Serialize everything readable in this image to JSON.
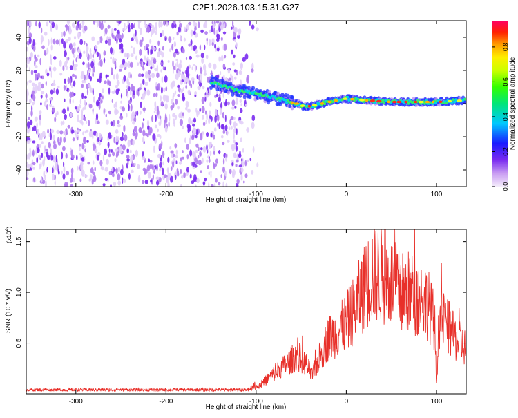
{
  "title": "C2E1.2026.103.15.31.G27",
  "colors": {
    "snr_line": "#e8302a",
    "scatter": "#7a2cf0",
    "axis": "#000000"
  },
  "chart_data": [
    {
      "type": "heatmap",
      "xlabel": "Height of straight line (km)",
      "ylabel": "Frequency (Hz)",
      "xlim": [
        -355,
        133
      ],
      "ylim": [
        -50,
        50
      ],
      "x_ticks": [
        {
          "value": -300,
          "label": "-300"
        },
        {
          "value": -200,
          "label": "-200"
        },
        {
          "value": -100,
          "label": "-100"
        },
        {
          "value": 0,
          "label": "0"
        },
        {
          "value": 100,
          "label": "100"
        }
      ],
      "y_ticks": [
        {
          "value": -40,
          "label": "-40"
        },
        {
          "value": -20,
          "label": "-20"
        },
        {
          "value": 0,
          "label": "0"
        },
        {
          "value": 20,
          "label": "20"
        },
        {
          "value": 40,
          "label": "40"
        }
      ],
      "noise_region": [
        -355,
        -115
      ],
      "signal_track": [
        {
          "x": -150,
          "y": 13
        },
        {
          "x": -135,
          "y": 10
        },
        {
          "x": -120,
          "y": 8
        },
        {
          "x": -100,
          "y": 6
        },
        {
          "x": -85,
          "y": 4
        },
        {
          "x": -70,
          "y": 2
        },
        {
          "x": -55,
          "y": 0
        },
        {
          "x": -45,
          "y": -2
        },
        {
          "x": -35,
          "y": -1
        },
        {
          "x": -20,
          "y": 1
        },
        {
          "x": 0,
          "y": 3
        },
        {
          "x": 20,
          "y": 2
        },
        {
          "x": 50,
          "y": 1
        },
        {
          "x": 80,
          "y": 1
        },
        {
          "x": 100,
          "y": 1
        },
        {
          "x": 133,
          "y": 2
        }
      ],
      "colorbar": {
        "label": "Normalized spectral amplitude",
        "range": [
          0,
          0.95
        ],
        "ticks": [
          {
            "value": 0.0,
            "label": "0.0"
          },
          {
            "value": 0.2,
            "label": "0.2"
          },
          {
            "value": 0.4,
            "label": "0.4"
          },
          {
            "value": 0.6,
            "label": "0.6"
          },
          {
            "value": 0.8,
            "label": "0.8"
          }
        ]
      }
    },
    {
      "type": "line",
      "xlabel": "Height of straight line (km)",
      "ylabel": "SNR (10 * v/v)",
      "scale_note": "(x10",
      "scale_exp": "4",
      "scale_close": ")",
      "xlim": [
        -355,
        133
      ],
      "ylim": [
        0,
        1.62
      ],
      "x_ticks": [
        {
          "value": -300,
          "label": "-300"
        },
        {
          "value": -200,
          "label": "-200"
        },
        {
          "value": -100,
          "label": "-100"
        },
        {
          "value": 0,
          "label": "0"
        },
        {
          "value": 100,
          "label": "100"
        }
      ],
      "y_ticks": [
        {
          "value": 0.5,
          "label": "0.5"
        },
        {
          "value": 1.0,
          "label": "1.0"
        },
        {
          "value": 1.5,
          "label": "1.5"
        }
      ],
      "envelope": [
        {
          "x": -355,
          "y": 0.04
        },
        {
          "x": -110,
          "y": 0.04
        },
        {
          "x": -95,
          "y": 0.09
        },
        {
          "x": -80,
          "y": 0.2
        },
        {
          "x": -65,
          "y": 0.3
        },
        {
          "x": -55,
          "y": 0.38
        },
        {
          "x": -45,
          "y": 0.3
        },
        {
          "x": -38,
          "y": 0.18
        },
        {
          "x": -30,
          "y": 0.35
        },
        {
          "x": -20,
          "y": 0.55
        },
        {
          "x": -10,
          "y": 0.6
        },
        {
          "x": 0,
          "y": 0.7
        },
        {
          "x": 10,
          "y": 0.85
        },
        {
          "x": 20,
          "y": 1.05
        },
        {
          "x": 30,
          "y": 1.2
        },
        {
          "x": 40,
          "y": 1.15
        },
        {
          "x": 50,
          "y": 1.1
        },
        {
          "x": 60,
          "y": 1.0
        },
        {
          "x": 70,
          "y": 1.0
        },
        {
          "x": 80,
          "y": 0.95
        },
        {
          "x": 90,
          "y": 0.9
        },
        {
          "x": 98,
          "y": 0.7
        },
        {
          "x": 100,
          "y": 0.1
        },
        {
          "x": 103,
          "y": 0.75
        },
        {
          "x": 110,
          "y": 0.7
        },
        {
          "x": 120,
          "y": 0.55
        },
        {
          "x": 133,
          "y": 0.45
        }
      ]
    }
  ]
}
